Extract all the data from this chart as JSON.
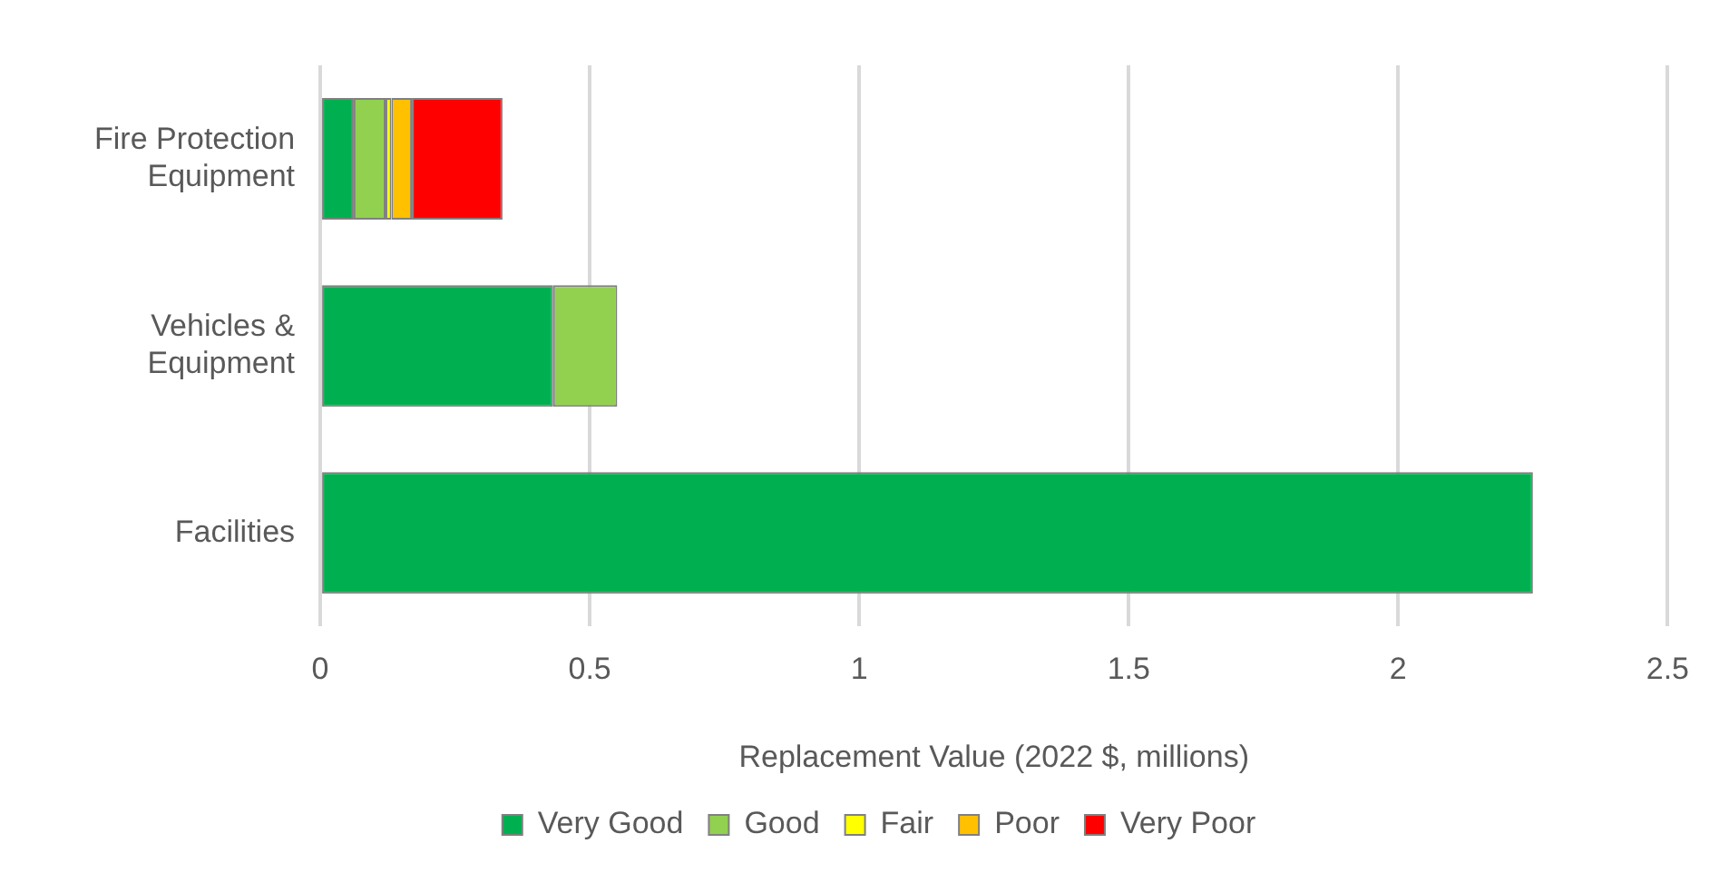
{
  "chart_data": {
    "type": "bar",
    "orientation": "horizontal",
    "stacked": true,
    "xlabel": "Replacement Value (2022 $, millions)",
    "categories": [
      "Fire Protection Equipment",
      "Vehicles & Equipment",
      "Facilities"
    ],
    "series": [
      {
        "name": "Very Good",
        "color": "#00b050",
        "values": [
          0.062,
          0.432,
          2.25
        ]
      },
      {
        "name": "Good",
        "color": "#92d050",
        "values": [
          0.059,
          0.119,
          0
        ]
      },
      {
        "name": "Fair",
        "color": "#ffff00",
        "values": [
          0.011,
          0,
          0
        ]
      },
      {
        "name": "Poor",
        "color": "#ffc000",
        "values": [
          0.038,
          0,
          0
        ]
      },
      {
        "name": "Very Poor",
        "color": "#ff0000",
        "values": [
          0.168,
          0,
          0
        ]
      }
    ],
    "xlim": [
      0,
      2.5
    ],
    "xticks": [
      0,
      0.5,
      1,
      1.5,
      2,
      2.5
    ],
    "grid": "x",
    "legend": "bottom"
  }
}
